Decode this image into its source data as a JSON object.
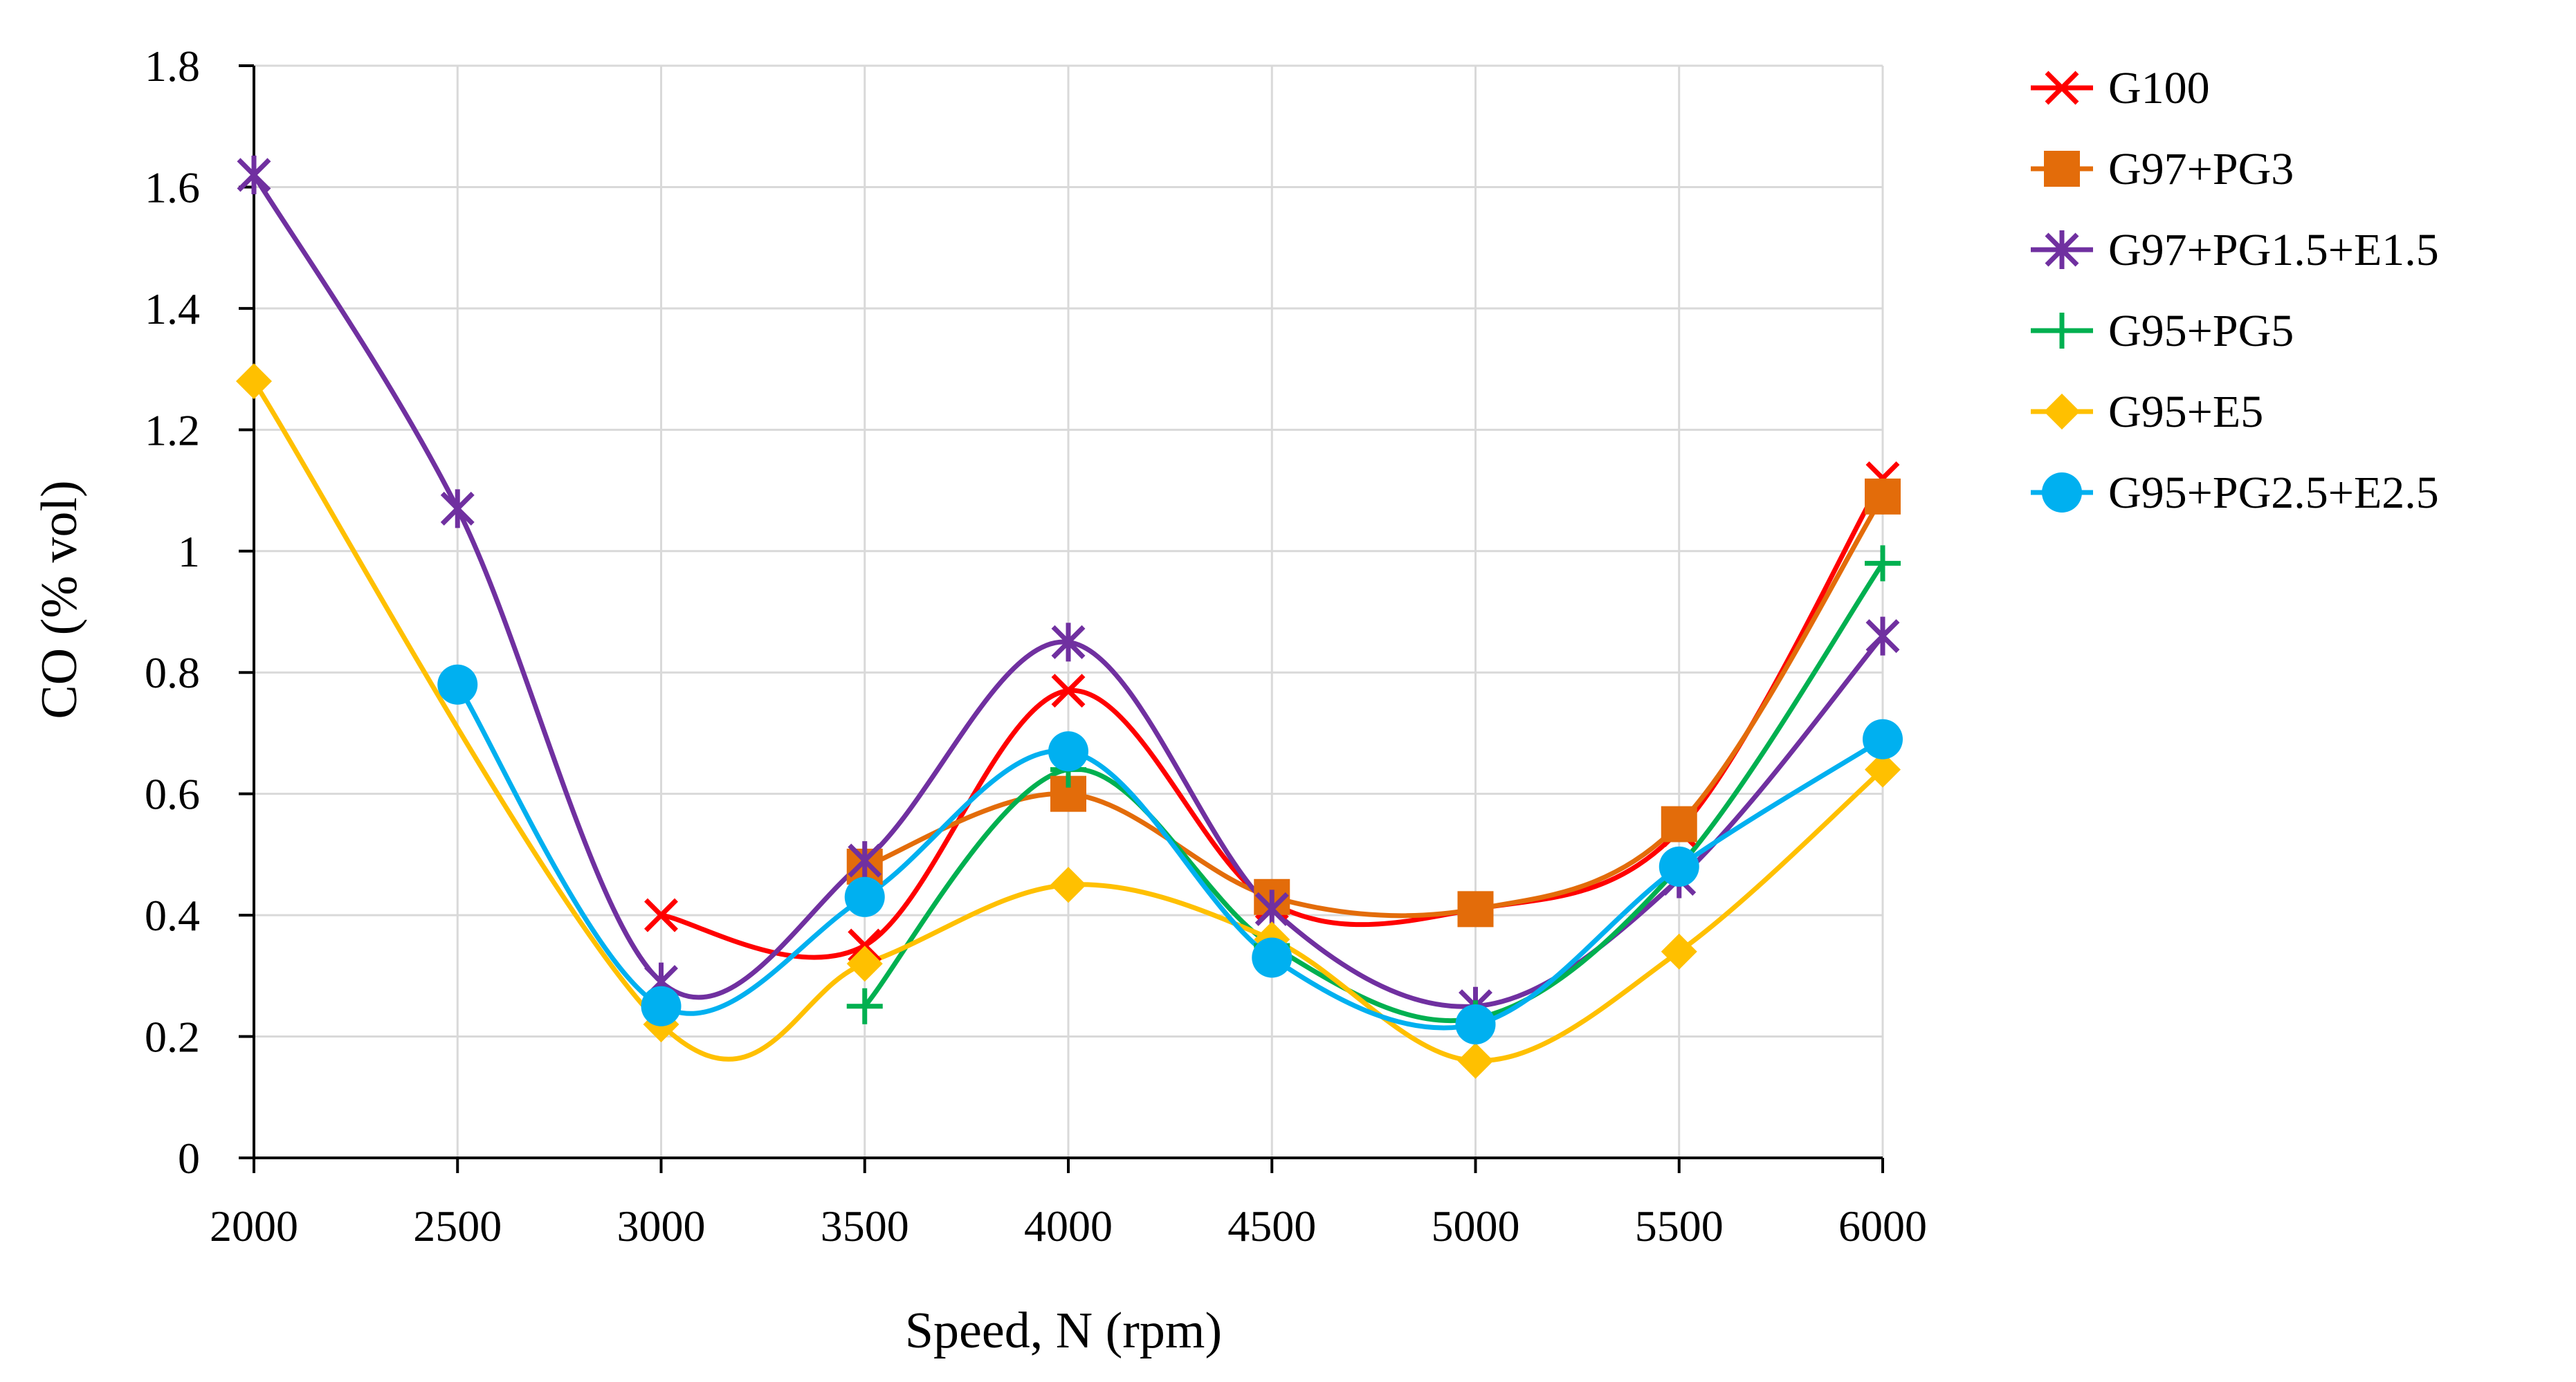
{
  "chart_data": {
    "type": "line",
    "smooth": true,
    "title": "",
    "xlabel": "Speed, N (rpm)",
    "ylabel": "CO (% vol)",
    "xlim": [
      2000,
      6000
    ],
    "ylim": [
      0,
      1.8
    ],
    "xticks": [
      "2000",
      "2500",
      "3000",
      "3500",
      "4000",
      "4500",
      "5000",
      "5500",
      "6000"
    ],
    "yticks": [
      "0",
      "0.2",
      "0.4",
      "0.6",
      "0.8",
      "1",
      "1.2",
      "1.4",
      "1.6",
      "1.8"
    ],
    "grid": true,
    "legend_position": "right",
    "series": [
      {
        "name": "G100",
        "color": "#ff0000",
        "marker": "x",
        "points": [
          [
            3000,
            0.4
          ],
          [
            3500,
            0.35
          ],
          [
            4000,
            0.77
          ],
          [
            4500,
            0.42
          ],
          [
            5000,
            0.41
          ],
          [
            5500,
            0.54
          ],
          [
            6000,
            1.12
          ]
        ]
      },
      {
        "name": "G97+PG3",
        "color": "#e36c0a",
        "marker": "square",
        "points": [
          [
            3500,
            0.48
          ],
          [
            4000,
            0.6
          ],
          [
            4500,
            0.43
          ],
          [
            5000,
            0.41
          ],
          [
            5500,
            0.55
          ],
          [
            6000,
            1.09
          ]
        ]
      },
      {
        "name": "G97+PG1.5+E1.5",
        "color": "#7030a0",
        "marker": "star",
        "points": [
          [
            2000,
            1.62
          ],
          [
            2500,
            1.07
          ],
          [
            3000,
            0.29
          ],
          [
            3500,
            0.49
          ],
          [
            4000,
            0.85
          ],
          [
            4500,
            0.41
          ],
          [
            5000,
            0.25
          ],
          [
            5500,
            0.46
          ],
          [
            6000,
            0.86
          ]
        ]
      },
      {
        "name": "G95+PG5",
        "color": "#00b050",
        "marker": "plus",
        "points": [
          [
            3500,
            0.25
          ],
          [
            4000,
            0.64
          ],
          [
            4500,
            0.35
          ],
          [
            5000,
            0.23
          ],
          [
            5500,
            0.48
          ],
          [
            6000,
            0.98
          ]
        ]
      },
      {
        "name": "G95+E5",
        "color": "#ffc000",
        "marker": "diamond",
        "points": [
          [
            2000,
            1.28
          ],
          [
            3000,
            0.22
          ],
          [
            3500,
            0.32
          ],
          [
            4000,
            0.45
          ],
          [
            4500,
            0.36
          ],
          [
            5000,
            0.16
          ],
          [
            5500,
            0.34
          ],
          [
            6000,
            0.64
          ]
        ]
      },
      {
        "name": "G95+PG2.5+E2.5",
        "color": "#00b0f0",
        "marker": "circle",
        "points": [
          [
            2500,
            0.78
          ],
          [
            3000,
            0.25
          ],
          [
            3500,
            0.43
          ],
          [
            4000,
            0.67
          ],
          [
            4500,
            0.33
          ],
          [
            5000,
            0.22
          ],
          [
            5500,
            0.48
          ],
          [
            6000,
            0.69
          ]
        ]
      }
    ]
  }
}
